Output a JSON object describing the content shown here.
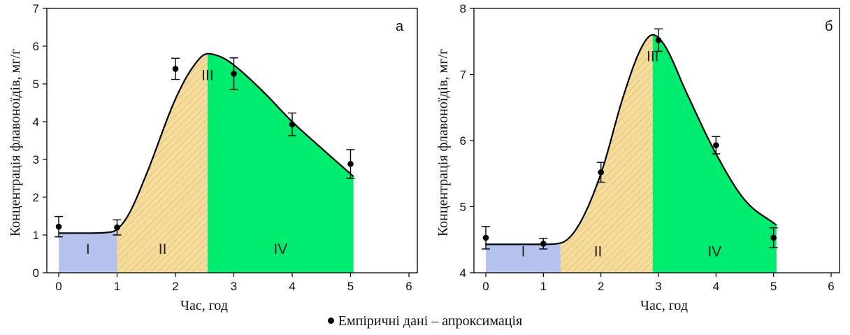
{
  "colors": {
    "region_I": "#b4c4ee",
    "region_II": "#f5dc9c",
    "region_II_hatch": "#e6c479",
    "region_III_IV": "#00ec6e",
    "curve": "#000000",
    "points": "#000000"
  },
  "legend": {
    "text": "Емпіричні дані – апроксимація"
  },
  "chart_data": [
    {
      "type": "line",
      "panel": "а",
      "xlabel": "Час, год",
      "ylabel": "Концентрація флавоноїдів, мг/г",
      "xlim": [
        0,
        6
      ],
      "ylim": [
        0,
        7
      ],
      "xticks": [
        "0",
        "1",
        "2",
        "3",
        "4",
        "5",
        "6"
      ],
      "yticks": [
        "0",
        "1",
        "2",
        "3",
        "4",
        "5",
        "6",
        "7"
      ],
      "grid": false,
      "legend_position": "bottom-center",
      "points": {
        "x": [
          0,
          1,
          2,
          3,
          4,
          5
        ],
        "y": [
          1.22,
          1.2,
          5.4,
          5.27,
          3.93,
          2.88
        ],
        "error": [
          0.27,
          0.2,
          0.28,
          0.42,
          0.3,
          0.38
        ]
      },
      "curve": {
        "x": [
          0,
          0.5,
          0.9,
          1.0,
          1.2,
          1.5,
          2.0,
          2.3,
          2.55,
          2.8,
          3.0,
          3.5,
          4.0,
          4.5,
          5.05
        ],
        "y": [
          1.05,
          1.05,
          1.08,
          1.15,
          1.55,
          2.6,
          4.6,
          5.45,
          5.8,
          5.7,
          5.5,
          4.8,
          4.0,
          3.3,
          2.55
        ]
      },
      "regions": [
        {
          "label": "I",
          "x": [
            0,
            1.0
          ]
        },
        {
          "label": "II",
          "x": [
            1.0,
            2.55
          ]
        },
        {
          "label": "III",
          "x": [
            2.55,
            2.55
          ]
        },
        {
          "label": "IV",
          "x": [
            2.55,
            5.05
          ]
        }
      ]
    },
    {
      "type": "line",
      "panel": "б",
      "xlabel": "Час, год",
      "ylabel": "Концентрація флавоноїдів, мг/г",
      "xlim": [
        0,
        6
      ],
      "ylim": [
        4,
        8
      ],
      "xticks": [
        "0",
        "1",
        "2",
        "3",
        "4",
        "5",
        "6"
      ],
      "yticks": [
        "4",
        "5",
        "6",
        "7",
        "8"
      ],
      "grid": false,
      "legend_position": "bottom-center",
      "points": {
        "x": [
          0,
          1,
          2,
          3,
          4,
          5
        ],
        "y": [
          4.53,
          4.44,
          5.52,
          7.52,
          5.93,
          4.53
        ],
        "error": [
          0.17,
          0.08,
          0.15,
          0.17,
          0.13,
          0.15
        ]
      },
      "curve": {
        "x": [
          0,
          0.5,
          1.0,
          1.3,
          1.6,
          2.0,
          2.4,
          2.7,
          2.9,
          3.1,
          3.5,
          4.0,
          4.5,
          5.05
        ],
        "y": [
          4.43,
          4.43,
          4.43,
          4.45,
          4.7,
          5.5,
          6.7,
          7.4,
          7.6,
          7.45,
          6.7,
          5.8,
          5.1,
          4.72
        ]
      },
      "regions": [
        {
          "label": "I",
          "x": [
            0,
            1.3
          ]
        },
        {
          "label": "II",
          "x": [
            1.3,
            2.9
          ]
        },
        {
          "label": "III",
          "x": [
            2.9,
            2.9
          ]
        },
        {
          "label": "IV",
          "x": [
            2.9,
            5.05
          ]
        }
      ]
    }
  ]
}
